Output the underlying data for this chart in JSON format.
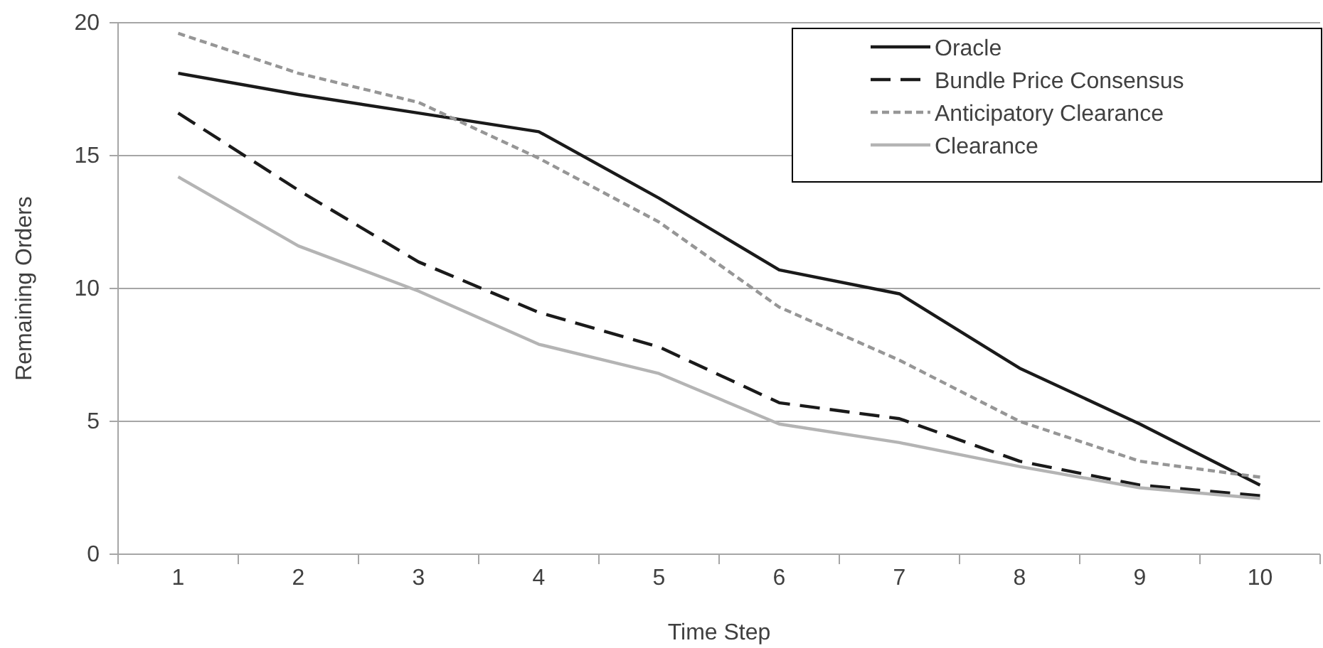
{
  "chart_data": {
    "type": "line",
    "xlabel": "Time Step",
    "ylabel": "Remaining Orders",
    "categories": [
      "1",
      "2",
      "3",
      "4",
      "5",
      "6",
      "7",
      "8",
      "9",
      "10"
    ],
    "ylim": [
      0,
      20
    ],
    "yticks": [
      0,
      5,
      10,
      15,
      20
    ],
    "grid": "y",
    "legend": "top right",
    "marker": "none",
    "series": [
      {
        "name": "Oracle",
        "color": "#1a1a1a",
        "line_style": "solid",
        "values": [
          18.1,
          17.3,
          16.6,
          15.9,
          13.4,
          10.7,
          9.8,
          7.0,
          4.9,
          2.6
        ]
      },
      {
        "name": "Bundle Price Consensus",
        "color": "#1a1a1a",
        "line_style": "dashed",
        "values": [
          16.6,
          13.7,
          11.0,
          9.1,
          7.8,
          5.7,
          5.1,
          3.5,
          2.6,
          2.2
        ]
      },
      {
        "name": "Anticipatory Clearance",
        "color": "#969696",
        "line_style": "dotted",
        "values": [
          19.6,
          18.1,
          17.0,
          14.9,
          12.5,
          9.3,
          7.3,
          5.0,
          3.5,
          2.9
        ]
      },
      {
        "name": "Clearance",
        "color": "#b4b4b4",
        "line_style": "solid",
        "values": [
          14.2,
          11.6,
          9.9,
          7.9,
          6.8,
          4.9,
          4.2,
          3.3,
          2.5,
          2.1
        ]
      }
    ]
  }
}
